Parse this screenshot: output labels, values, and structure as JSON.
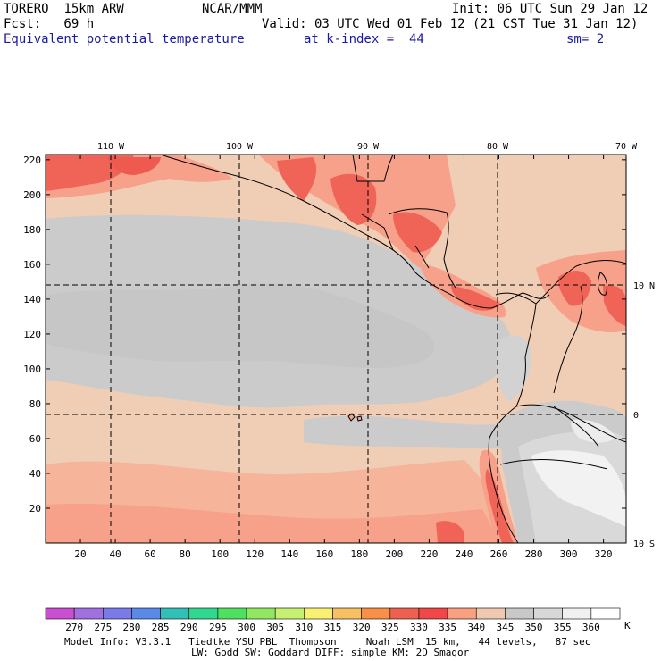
{
  "header": {
    "model": "TORERO  15km ARW",
    "org": "NCAR/MMM",
    "init": "Init: 06 UTC Sun 29 Jan 12",
    "fcst": "Fcst:   69 h",
    "valid": "Valid: 03 UTC Wed 01 Feb 12 (21 CST Tue 31 Jan 12)",
    "field": "Equivalent potential temperature",
    "level": "at k-index =  44",
    "smooth": "sm= 2"
  },
  "axes": {
    "x_ticks": [
      "20",
      "40",
      "60",
      "80",
      "100",
      "120",
      "140",
      "160",
      "180",
      "200",
      "220",
      "240",
      "260",
      "280",
      "300",
      "320"
    ],
    "y_ticks": [
      "20",
      "40",
      "60",
      "80",
      "100",
      "120",
      "140",
      "160",
      "180",
      "200",
      "220"
    ],
    "lon_labels": [
      "110 W",
      "100 W",
      "90 W",
      "80 W",
      "70 W"
    ],
    "lat_labels": [
      "10 N",
      "0",
      "10 S"
    ]
  },
  "legend": {
    "values": [
      "270",
      "275",
      "280",
      "285",
      "290",
      "295",
      "300",
      "305",
      "310",
      "315",
      "320",
      "325",
      "330",
      "335",
      "340",
      "345",
      "350",
      "355",
      "360"
    ],
    "unit": "K",
    "colors": [
      "#c94fd0",
      "#a070e0",
      "#7a7ae8",
      "#5a8ae8",
      "#30c0b8",
      "#30d890",
      "#50e060",
      "#90e860",
      "#c8f070",
      "#f8f070",
      "#f8c060",
      "#f89048",
      "#f06050",
      "#f04848",
      "#f8a080",
      "#f0c8b0",
      "#c8c8c8",
      "#d8d8d8",
      "#f0f0f0",
      "#ffffff"
    ],
    "palette": {
      "ocean_light": "#f0cdb5",
      "ocean_gray": "#cbcbcb",
      "warm": "#f7a08a",
      "hot": "#f06458",
      "land_cool": "#d9d9d9",
      "land_white": "#f2f2f2"
    }
  },
  "footer": {
    "line1": "Model Info: V3.3.1   Tiedtke YSU PBL  Thompson     Noah LSM  15 km,   44 levels,   87 sec",
    "line2": "LW: Godd SW: Goddard DIFF: simple KM: 2D Smagor"
  }
}
